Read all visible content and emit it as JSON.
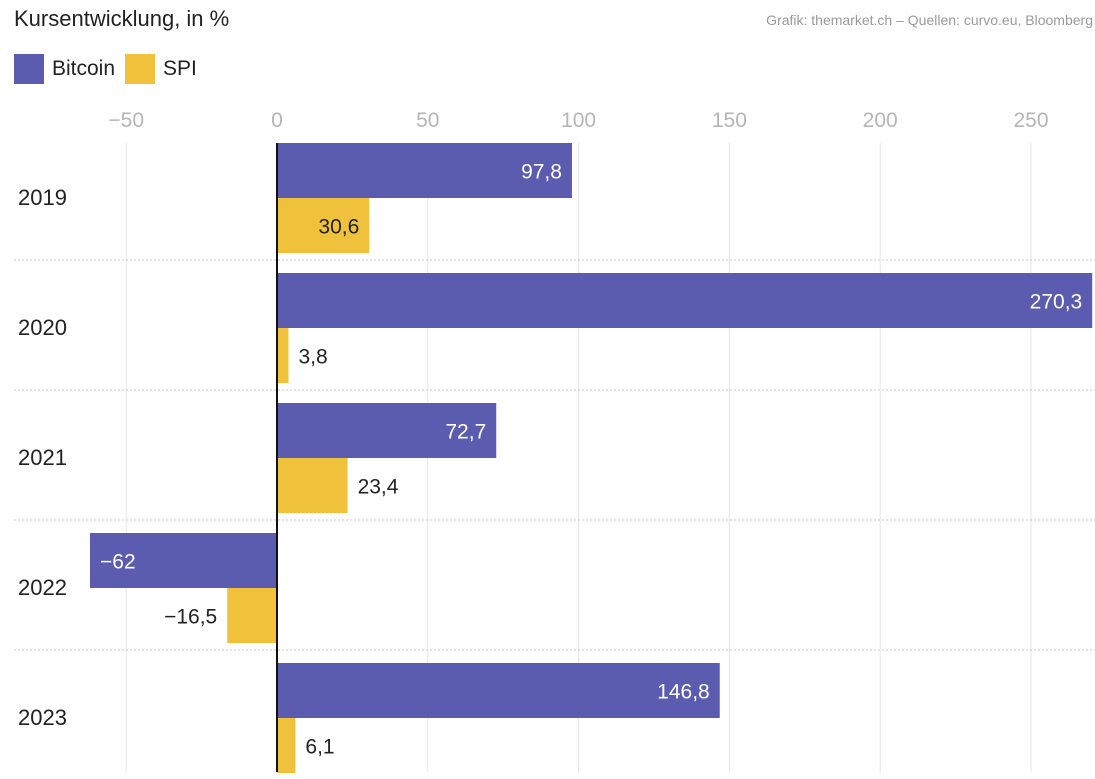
{
  "header": {
    "title": "Kursentwicklung, in %",
    "source": "Grafik: themarket.ch – Quellen: curvo.eu, Bloomberg"
  },
  "chart_data": {
    "type": "bar",
    "orientation": "horizontal",
    "title": "Kursentwicklung, in %",
    "categories": [
      "2019",
      "2020",
      "2021",
      "2022",
      "2023"
    ],
    "series": [
      {
        "name": "Bitcoin",
        "color": "#5b5caf",
        "values": [
          97.8,
          270.3,
          72.7,
          -62,
          146.8
        ],
        "labels": [
          "97,8",
          "270,3",
          "72,7",
          "−62",
          "146,8"
        ]
      },
      {
        "name": "SPI",
        "color": "#f0c23b",
        "values": [
          30.6,
          3.8,
          23.4,
          -16.5,
          6.1
        ],
        "labels": [
          "30,6",
          "3,8",
          "23,4",
          "−16,5",
          "6,1"
        ]
      }
    ],
    "xlim": [
      -50,
      270
    ],
    "xticks": [
      -50,
      0,
      50,
      100,
      150,
      200,
      250
    ],
    "xtick_labels": [
      "−50",
      "0",
      "50",
      "100",
      "150",
      "200",
      "250"
    ],
    "axis_position": "top",
    "grid": true,
    "legend_position": "top-left"
  }
}
